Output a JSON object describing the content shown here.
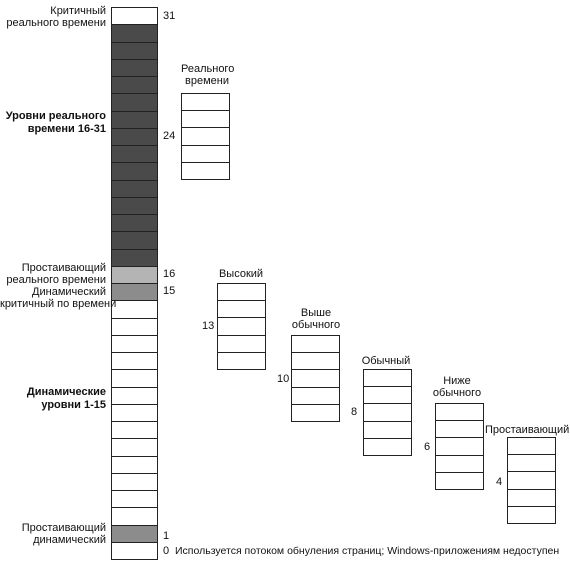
{
  "column": {
    "levels": 32,
    "label_critical_rt": [
      "Критичный",
      "реального времени"
    ],
    "label_rt_levels": [
      "Уровни реального",
      "времени 16-31"
    ],
    "label_idle_rt": [
      "Простаивающий",
      "реального времени"
    ],
    "label_dyn_critical": [
      "Динамический",
      "критичный по времени"
    ],
    "label_dyn_levels": [
      "Динамические",
      "уровни 1-15"
    ],
    "label_idle_dyn": [
      "Простаивающий",
      "динамический"
    ],
    "num_31": "31",
    "num_24": "24",
    "num_16": "16",
    "num_15": "15",
    "num_1": "1",
    "num_0": "0",
    "zero_note": "Используется потоком обнуления страниц; Windows-приложениям недоступен",
    "colors": {
      "rt": "#4a4a4a",
      "idle_rt": "#b4b4b4",
      "dyn_critical": "#8c8c8c",
      "idle_dyn": "#8c8c8c",
      "normal": "#ffffff"
    }
  },
  "classes": [
    {
      "title": [
        "Реального",
        "времени"
      ],
      "base": "24",
      "cells": 5
    },
    {
      "title": [
        "Высокий"
      ],
      "base": "13",
      "cells": 5
    },
    {
      "title": [
        "Выше",
        "обычного"
      ],
      "base": "10",
      "cells": 5
    },
    {
      "title": [
        "Обычный"
      ],
      "base": "8",
      "cells": 5
    },
    {
      "title": [
        "Ниже",
        "обычного"
      ],
      "base": "6",
      "cells": 5
    },
    {
      "title": [
        "Простаивающий"
      ],
      "base": "4",
      "cells": 5
    }
  ]
}
